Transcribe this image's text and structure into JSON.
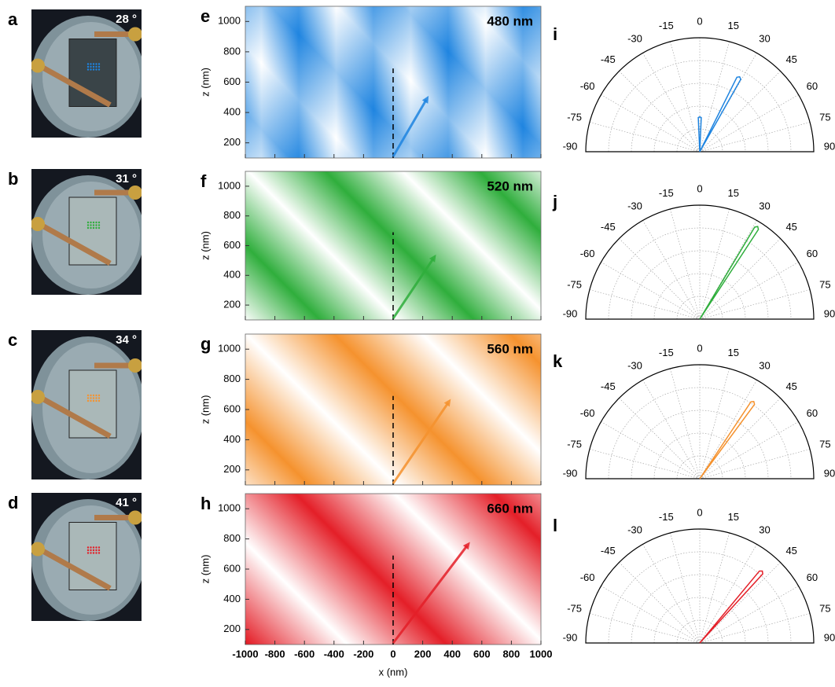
{
  "panels": [
    {
      "photo_letter": "a",
      "angle": "28 °",
      "map_letter": "e",
      "wavelength": "480 nm",
      "color": "#1e84e0",
      "arrow_end": [
        240,
        510
      ],
      "polar_letter": "i",
      "lobes": [
        {
          "angle": 28,
          "length": 0.73
        },
        {
          "angle": 0,
          "length": 0.3
        }
      ]
    },
    {
      "photo_letter": "b",
      "angle": "31 °",
      "map_letter": "f",
      "wavelength": "520 nm",
      "color": "#2fae3c",
      "arrow_end": [
        290,
        540
      ],
      "polar_letter": "j",
      "lobes": [
        {
          "angle": 32,
          "length": 0.94
        }
      ]
    },
    {
      "photo_letter": "c",
      "angle": "34 °",
      "map_letter": "g",
      "wavelength": "560 nm",
      "color": "#f5922e",
      "arrow_end": [
        390,
        670
      ],
      "polar_letter": "k",
      "lobes": [
        {
          "angle": 35,
          "length": 0.81
        }
      ]
    },
    {
      "photo_letter": "d",
      "angle": "41 °",
      "map_letter": "h",
      "wavelength": "660 nm",
      "color": "#e41f28",
      "arrow_end": [
        520,
        780
      ],
      "polar_letter": "l",
      "lobes": [
        {
          "angle": 41,
          "length": 0.82
        }
      ]
    }
  ],
  "field_maps": {
    "xlim": [
      -1000,
      1000
    ],
    "ylim": [
      100,
      1100
    ],
    "xticks": [
      -1000,
      -800,
      -600,
      -400,
      -200,
      0,
      200,
      400,
      600,
      800,
      1000
    ],
    "yticks": [
      200,
      400,
      600,
      800,
      1000
    ],
    "xlabel": "x (nm)",
    "ylabel": "z (nm)",
    "arrow_start": [
      0,
      110
    ],
    "dashed_line": [
      100,
      690
    ]
  },
  "polar": {
    "ticks": [
      -90,
      -75,
      -60,
      -45,
      -30,
      -15,
      0,
      15,
      30,
      45,
      60,
      75,
      90
    ]
  }
}
